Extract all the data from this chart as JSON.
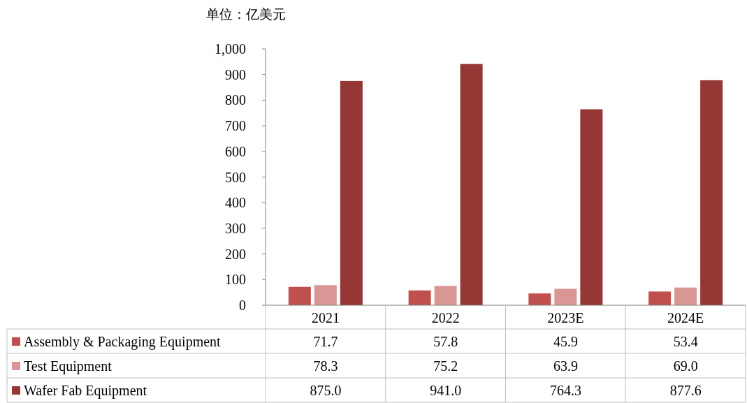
{
  "chart_data": {
    "type": "bar",
    "ylabel": "单位：亿美元",
    "categories": [
      "2021",
      "2022",
      "2023E",
      "2024E"
    ],
    "series": [
      {
        "name": "Assembly & Packaging Equipment",
        "color": "#c0504d",
        "values": [
          71.7,
          57.8,
          45.9,
          53.4
        ],
        "value_labels": [
          "71.7",
          "57.8",
          "45.9",
          "53.4"
        ]
      },
      {
        "name": "Test Equipment",
        "color": "#da9694",
        "values": [
          78.3,
          75.2,
          63.9,
          69.0
        ],
        "value_labels": [
          "78.3",
          "75.2",
          "63.9",
          "69.0"
        ]
      },
      {
        "name": "Wafer Fab Equipment",
        "color": "#953735",
        "values": [
          875.0,
          941.0,
          764.3,
          877.6
        ],
        "value_labels": [
          "875.0",
          "941.0",
          "764.3",
          "877.6"
        ]
      }
    ],
    "ylim": [
      0,
      1000
    ],
    "yticks": [
      0,
      100,
      200,
      300,
      400,
      500,
      600,
      700,
      800,
      900,
      {
        "value": 1000,
        "label": "1,000"
      }
    ],
    "legend": "bottom",
    "grid": false
  }
}
